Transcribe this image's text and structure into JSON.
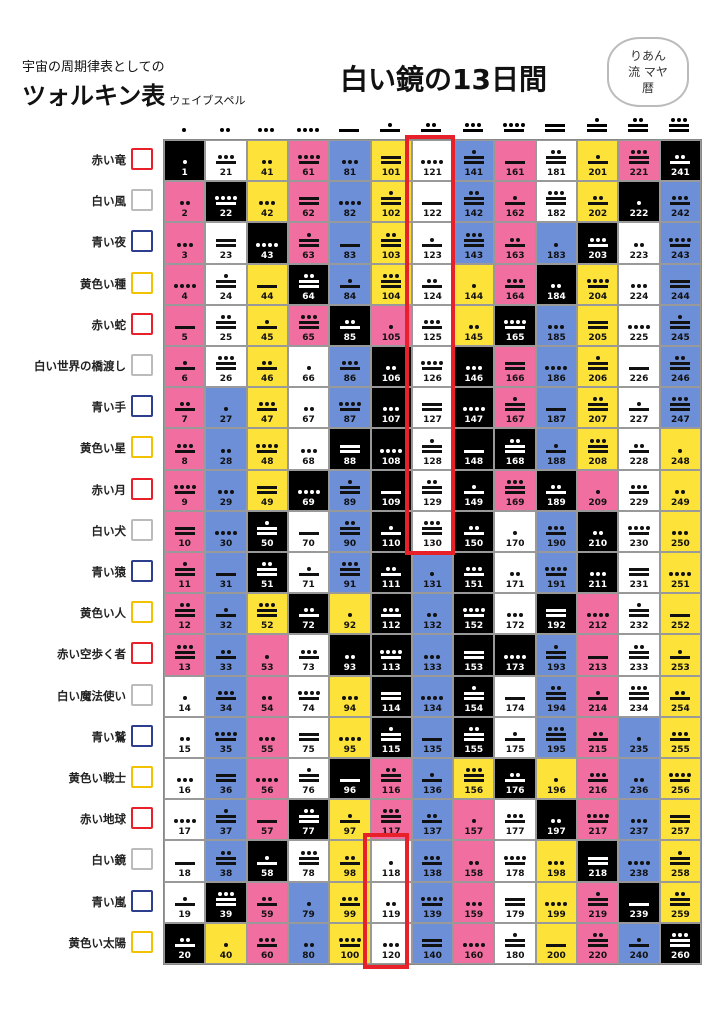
{
  "header": {
    "subtitle": "宇宙の周期律表としての",
    "title": "ツォルキン表",
    "title_suffix": "ウェイブスペル",
    "heading": "白い鏡の13日間",
    "logo": "りあん流 マヤ暦"
  },
  "seals": [
    {
      "name": "赤い竜",
      "color": "#e8202a"
    },
    {
      "name": "白い風",
      "color": "#bbbbbb"
    },
    {
      "name": "青い夜",
      "color": "#2c3e8c"
    },
    {
      "name": "黄色い種",
      "color": "#f2c200"
    },
    {
      "name": "赤い蛇",
      "color": "#e8202a"
    },
    {
      "name": "白い世界の橋渡し",
      "color": "#bbbbbb"
    },
    {
      "name": "青い手",
      "color": "#2c3e8c"
    },
    {
      "name": "黄色い星",
      "color": "#f2c200"
    },
    {
      "name": "赤い月",
      "color": "#e8202a"
    },
    {
      "name": "白い犬",
      "color": "#bbbbbb"
    },
    {
      "name": "青い猿",
      "color": "#2c3e8c"
    },
    {
      "name": "黄色い人",
      "color": "#f2c200"
    },
    {
      "name": "赤い空歩く者",
      "color": "#e8202a"
    },
    {
      "name": "白い魔法使い",
      "color": "#bbbbbb"
    },
    {
      "name": "青い鷲",
      "color": "#2c3e8c"
    },
    {
      "name": "黄色い戦士",
      "color": "#f2c200"
    },
    {
      "name": "赤い地球",
      "color": "#e8202a"
    },
    {
      "name": "白い鏡",
      "color": "#bbbbbb"
    },
    {
      "name": "青い嵐",
      "color": "#2c3e8c"
    },
    {
      "name": "黄色い太陽",
      "color": "#f2c200"
    }
  ],
  "tones": [
    1,
    2,
    3,
    4,
    5,
    6,
    7,
    8,
    9,
    10,
    11,
    12,
    13
  ],
  "wavespell_colors": [
    "#f06fa0",
    "#ffffff",
    "#6d8fd8",
    "#fde23a"
  ],
  "portal_color": "#000000",
  "portal_kins": [
    1,
    20,
    22,
    39,
    43,
    50,
    51,
    58,
    64,
    69,
    72,
    77,
    85,
    88,
    93,
    96,
    106,
    107,
    108,
    109,
    110,
    111,
    112,
    113,
    114,
    115,
    146,
    147,
    148,
    149,
    150,
    151,
    152,
    153,
    154,
    155,
    165,
    168,
    173,
    176,
    184,
    189,
    192,
    197,
    203,
    210,
    211,
    218,
    222,
    239,
    241,
    260
  ],
  "highlighted_kins": [
    118,
    119,
    120,
    121,
    122,
    123,
    124,
    125,
    126,
    127,
    128,
    129,
    130
  ],
  "highlight_color": "#e8202a"
}
